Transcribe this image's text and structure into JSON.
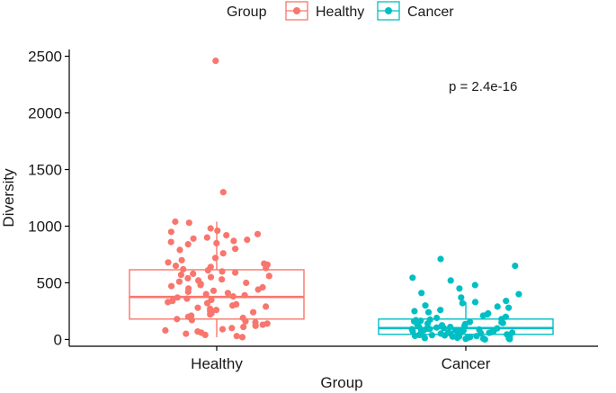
{
  "chart_data": {
    "type": "boxplot",
    "title": "",
    "xlabel": "Group",
    "ylabel": "Diversity",
    "categories": [
      "Healthy",
      "Cancer"
    ],
    "ylim": [
      -60,
      2560
    ],
    "yticks": [
      0,
      500,
      1000,
      1500,
      2000,
      2500
    ],
    "legend": {
      "title": "Group",
      "position": "top",
      "entries": [
        {
          "name": "Healthy",
          "color": "#F8766D"
        },
        {
          "name": "Cancer",
          "color": "#00BFC4"
        }
      ]
    },
    "annotation": "p = 2.4e-16",
    "series": [
      {
        "name": "Healthy",
        "color": "#F8766D",
        "box": {
          "q1": 180,
          "median": 375,
          "q3": 615,
          "whisker_low": 20,
          "whisker_high": 1040
        },
        "points": [
          2460,
          1300,
          1040,
          1030,
          980,
          960,
          950,
          930,
          920,
          900,
          890,
          880,
          870,
          860,
          850,
          840,
          800,
          790,
          760,
          720,
          700,
          680,
          670,
          660,
          650,
          640,
          630,
          620,
          610,
          600,
          590,
          580,
          570,
          560,
          550,
          540,
          530,
          520,
          510,
          500,
          490,
          480,
          470,
          460,
          450,
          440,
          430,
          420,
          410,
          400,
          390,
          380,
          370,
          360,
          350,
          340,
          330,
          320,
          310,
          300,
          290,
          280,
          270,
          260,
          250,
          240,
          230,
          220,
          210,
          200,
          190,
          180,
          170,
          160,
          150,
          140,
          130,
          120,
          110,
          100,
          90,
          80,
          70,
          60,
          50,
          40,
          30,
          20
        ]
      },
      {
        "name": "Cancer",
        "color": "#00BFC4",
        "box": {
          "q1": 45,
          "median": 100,
          "q3": 180,
          "whisker_low": 0,
          "whisker_high": 330
        },
        "points": [
          710,
          650,
          545,
          520,
          480,
          450,
          410,
          400,
          370,
          340,
          330,
          320,
          300,
          290,
          280,
          260,
          250,
          240,
          230,
          220,
          210,
          200,
          190,
          180,
          175,
          170,
          165,
          160,
          155,
          150,
          145,
          140,
          135,
          130,
          125,
          120,
          115,
          110,
          105,
          100,
          98,
          95,
          92,
          90,
          88,
          85,
          82,
          80,
          78,
          75,
          72,
          70,
          68,
          65,
          62,
          60,
          58,
          55,
          52,
          50,
          48,
          45,
          42,
          40,
          38,
          35,
          32,
          30,
          28,
          25,
          22,
          20,
          18,
          15,
          12,
          10,
          8,
          5,
          3,
          0
        ]
      }
    ]
  }
}
